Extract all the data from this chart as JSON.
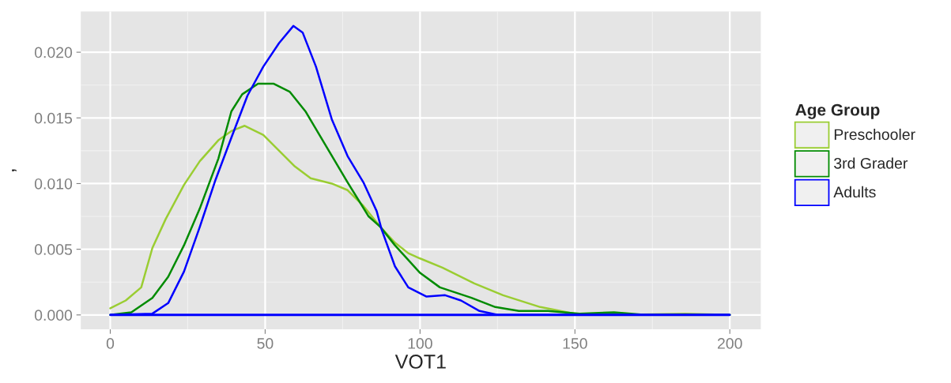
{
  "chart_data": {
    "type": "line",
    "ref_lines": [
      {
        "axis": "y",
        "value": 0,
        "color": "#0000ff"
      }
    ],
    "xlabel": "VOT1",
    "ylabel": "’",
    "legend_title": "Age Group",
    "legend": "right",
    "grid": true,
    "xlim": [
      -9.5,
      210
    ],
    "ylim": [
      -0.0011,
      0.0231
    ],
    "xticks": [
      0,
      50,
      100,
      150,
      200
    ],
    "yticks": [
      {
        "value": 0,
        "label": "0.000"
      },
      {
        "value": 0.005,
        "label": "0.005"
      },
      {
        "value": 0.01,
        "label": "0.010"
      },
      {
        "value": 0.015,
        "label": "0.015"
      },
      {
        "value": 0.02,
        "label": "0.020"
      }
    ],
    "series": [
      {
        "name": "Preschooler",
        "color": "#9acd32",
        "x": [
          0,
          5,
          10,
          13.6,
          17.9,
          23.8,
          28.9,
          34.9,
          39.1,
          43.4,
          49.4,
          54.5,
          59.6,
          64.7,
          71.5,
          76.6,
          81.7,
          87.2,
          91.9,
          96.2,
          100,
          107.2,
          117.5,
          126.8,
          138.8,
          149.8,
          164,
          185.6,
          200
        ],
        "values": [
          0.0005,
          0.0011,
          0.0021,
          0.0051,
          0.0073,
          0.0099,
          0.0117,
          0.0133,
          0.014,
          0.0144,
          0.0137,
          0.0125,
          0.0113,
          0.0104,
          0.01,
          0.0095,
          0.0083,
          0.0067,
          0.0055,
          0.0047,
          0.0043,
          0.0036,
          0.0024,
          0.0015,
          0.0006,
          0.0001,
          0,
          0.0001,
          0
        ]
      },
      {
        "name": "3rd Grader",
        "color": "#008b00",
        "x": [
          0,
          6.8,
          13.6,
          18.7,
          23.8,
          28.9,
          34.9,
          39.1,
          42.6,
          47.7,
          52.8,
          57.9,
          63,
          69.8,
          76.6,
          83.4,
          87.2,
          91.9,
          100,
          106.4,
          116.6,
          124.3,
          131.9,
          141.3,
          151.5,
          162.6,
          172.8,
          200
        ],
        "values": [
          0,
          0.0002,
          0.0013,
          0.0029,
          0.0053,
          0.0081,
          0.0119,
          0.0155,
          0.0168,
          0.0176,
          0.0176,
          0.017,
          0.0155,
          0.0128,
          0.0101,
          0.0075,
          0.0067,
          0.0053,
          0.0032,
          0.0021,
          0.0013,
          0.0006,
          0.0003,
          0.0003,
          0.0001,
          0.0002,
          0,
          0
        ]
      },
      {
        "name": "Adults",
        "color": "#0000ff",
        "x": [
          0,
          13.6,
          18.7,
          23.8,
          28.9,
          34,
          39.1,
          44.3,
          49.4,
          54.5,
          59.1,
          62.1,
          66.4,
          71.5,
          76.6,
          81.7,
          86,
          87.6,
          91.9,
          96.2,
          102.1,
          108.1,
          113.2,
          119.2,
          125.1,
          200
        ],
        "values": [
          0,
          0.0001,
          0.0009,
          0.0033,
          0.0067,
          0.0103,
          0.0135,
          0.0167,
          0.0189,
          0.0207,
          0.022,
          0.0215,
          0.0189,
          0.0149,
          0.0121,
          0.0101,
          0.0079,
          0.0065,
          0.0037,
          0.0021,
          0.0014,
          0.0015,
          0.0011,
          0.0003,
          0,
          0
        ]
      }
    ]
  }
}
